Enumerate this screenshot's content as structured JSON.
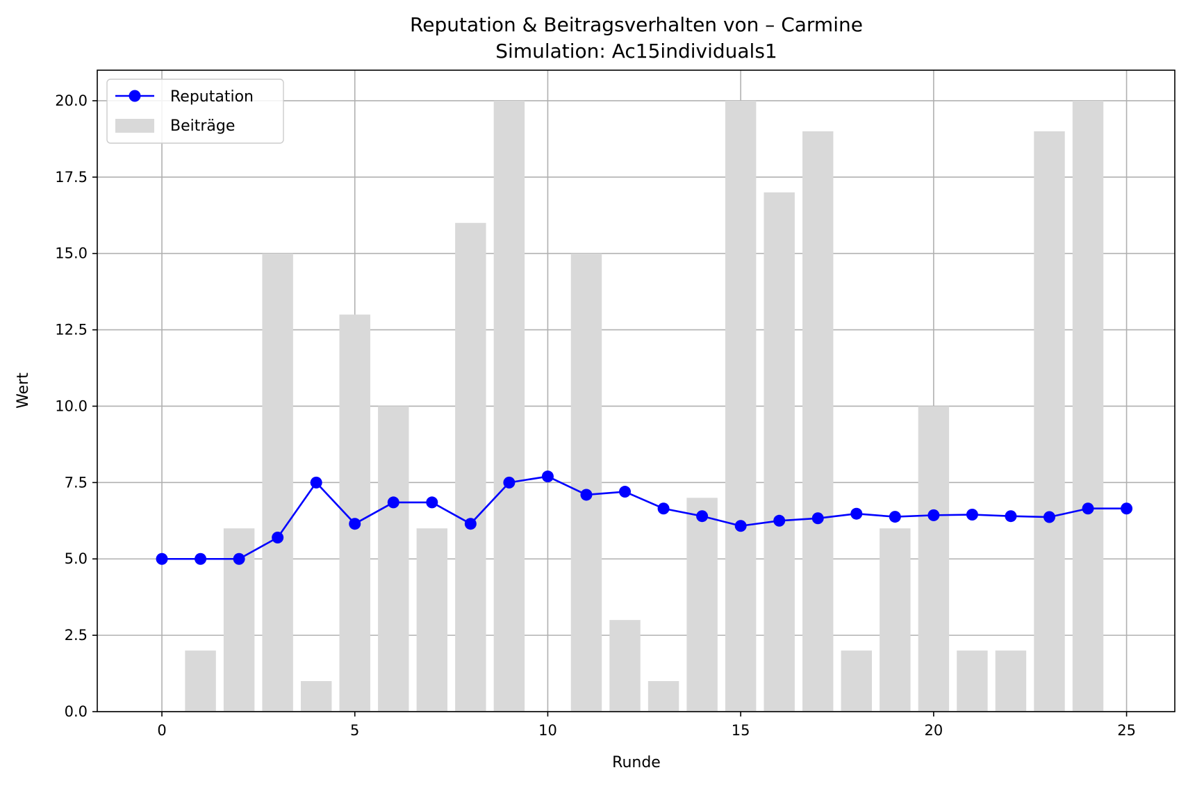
{
  "chart_data": {
    "type": "bar",
    "title": "Reputation & Beitragsverhalten von – Carmine",
    "subtitle": "Simulation: Ac15individuals1",
    "xlabel": "Runde",
    "ylabel": "Wert",
    "xlim": [
      -1.675,
      26.25
    ],
    "ylim": [
      0,
      21
    ],
    "x_ticks": [
      0,
      5,
      10,
      15,
      20,
      25
    ],
    "x_tick_labels": [
      "0",
      "5",
      "10",
      "15",
      "20",
      "25"
    ],
    "y_ticks": [
      0,
      2.5,
      5,
      7.5,
      10,
      12.5,
      15,
      17.5,
      20
    ],
    "y_tick_labels": [
      "0.0",
      "2.5",
      "5.0",
      "7.5",
      "10.0",
      "12.5",
      "15.0",
      "17.5",
      "20.0"
    ],
    "grid": true,
    "legend_position": "upper-left",
    "series": [
      {
        "name": "Beiträge",
        "type": "bar",
        "color": "#d9d9d9",
        "x": [
          1,
          2,
          3,
          4,
          5,
          6,
          7,
          8,
          9,
          10,
          11,
          12,
          13,
          14,
          15,
          16,
          17,
          18,
          19,
          20,
          21,
          22,
          23,
          24
        ],
        "values": [
          2,
          6,
          15,
          1,
          13,
          10,
          6,
          16,
          20,
          0,
          15,
          3,
          1,
          7,
          20,
          17,
          19,
          2,
          6,
          10,
          2,
          2,
          19,
          20
        ]
      },
      {
        "name": "Reputation",
        "type": "line",
        "marker": "circle",
        "color": "#0000ff",
        "x": [
          0,
          1,
          2,
          3,
          4,
          5,
          6,
          7,
          8,
          9,
          10,
          11,
          12,
          13,
          14,
          15,
          16,
          17,
          18,
          19,
          20,
          21,
          22,
          23,
          24,
          25
        ],
        "values": [
          5.0,
          5.0,
          5.0,
          5.7,
          7.5,
          6.15,
          6.85,
          6.85,
          6.15,
          7.5,
          7.7,
          7.1,
          7.2,
          6.65,
          6.4,
          6.08,
          6.25,
          6.33,
          6.48,
          6.38,
          6.43,
          6.45,
          6.4,
          6.37,
          6.65,
          6.65
        ]
      }
    ]
  }
}
